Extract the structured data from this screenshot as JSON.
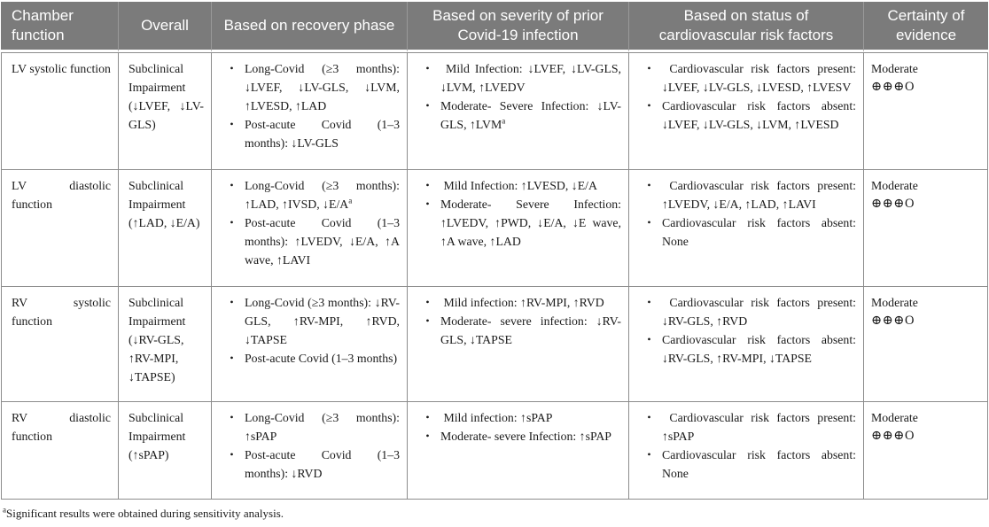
{
  "table": {
    "headers": {
      "chamber": "Chamber function",
      "overall": "Overall",
      "recovery": "Based on recovery phase",
      "severity": "Based on severity of prior Covid-19 infection",
      "risk": "Based on status of cardiovascular risk factors",
      "certainty": "Certainty of evidence"
    },
    "rows": [
      {
        "chamber": "LV systolic function",
        "overall": "Subclinical Impairment (↓LVEF, ↓LV-GLS)",
        "recovery": [
          "Long-Covid (≥3 months): ↓LVEF, ↓LV-GLS, ↓LVM, ↑LVESD, ↑LAD",
          "Post-acute Covid (1–3 months): ↓LV-GLS"
        ],
        "severity": [
          " Mild Infection: ↓LVEF, ↓LV-GLS, ↓LVM, ↑LVEDV",
          "Moderate- Severe Infection: ↓LV-GLS, ↑LVM^a"
        ],
        "risk": [
          " Cardiovascular risk factors present: ↓LVEF, ↓LV-GLS, ↓LVESD, ↑LVESV",
          "Cardiovascular risk factors absent: ↓LVEF, ↓LV-GLS, ↓LVM, ↑LVESD"
        ],
        "certainty_level": "Moderate",
        "certainty_symbols": "⊕⊕⊕O"
      },
      {
        "chamber": "LV diastolic function",
        "overall": "Subclinical Impairment (↑LAD, ↓E/A)",
        "recovery": [
          "Long-Covid (≥3 months): ↑LAD, ↑IVSD, ↓E/A^a",
          "Post-acute Covid (1–3 months): ↑LVEDV, ↓E/A, ↑A wave, ↑LAVI"
        ],
        "severity": [
          " Mild Infection: ↑LVESD, ↓E/A",
          "Moderate- Severe Infection: ↑LVEDV, ↑PWD, ↓E/A, ↓E wave, ↑A wave, ↑LAD"
        ],
        "risk": [
          " Cardiovascular risk factors present: ↑LVEDV, ↓E/A, ↑LAD, ↑LAVI",
          "Cardiovascular risk factors absent: None"
        ],
        "certainty_level": "Moderate",
        "certainty_symbols": "⊕⊕⊕O"
      },
      {
        "chamber": "RV systolic function",
        "overall": "Subclinical Impairment (↓RV-GLS, ↑RV-MPI, ↓TAPSE)",
        "recovery": [
          "Long-Covid (≥3 months): ↓RV-GLS, ↑RV-MPI, ↑RVD, ↓TAPSE",
          "Post-acute Covid (1–3 months)"
        ],
        "severity": [
          " Mild infection: ↑RV-MPI, ↑RVD",
          "Moderate- severe infection: ↓RV-GLS, ↓TAPSE"
        ],
        "risk": [
          " Cardiovascular risk factors present: ↓RV-GLS, ↑RVD",
          "Cardiovascular risk factors absent: ↓RV-GLS, ↑RV-MPI, ↓TAPSE"
        ],
        "certainty_level": "Moderate",
        "certainty_symbols": "⊕⊕⊕O"
      },
      {
        "chamber": "RV diastolic function",
        "overall": "Subclinical Impairment (↑sPAP)",
        "recovery": [
          "Long-Covid (≥3 months): ↑sPAP",
          "Post-acute Covid (1–3 months): ↓RVD"
        ],
        "severity": [
          " Mild infection: ↑sPAP",
          "Moderate- severe Infection: ↑sPAP"
        ],
        "risk": [
          " Cardiovascular risk factors present: ↑sPAP",
          "Cardiovascular risk factors absent: None"
        ],
        "certainty_level": "Moderate",
        "certainty_symbols": "⊕⊕⊕O"
      }
    ]
  },
  "footnote": {
    "marker": "a",
    "text": "Significant results were obtained during sensitivity analysis."
  }
}
